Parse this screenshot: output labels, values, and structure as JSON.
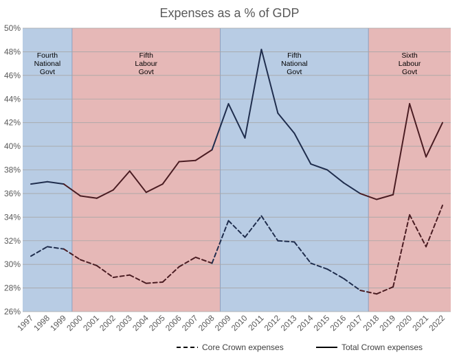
{
  "chart_data": {
    "type": "line",
    "title": "Expenses as a % of GDP",
    "xlabel": "",
    "ylabel": "",
    "x": [
      "1997",
      "1998",
      "1999",
      "2000",
      "2001",
      "2002",
      "2003",
      "2004",
      "2005",
      "2006",
      "2007",
      "2008",
      "2009",
      "2010",
      "2011",
      "2012",
      "2013",
      "2014",
      "2015",
      "2016",
      "2017",
      "2018",
      "2019",
      "2020",
      "2021",
      "2022"
    ],
    "ylim": [
      26,
      50
    ],
    "y_ticks": [
      "26%",
      "28%",
      "30%",
      "32%",
      "34%",
      "36%",
      "38%",
      "40%",
      "42%",
      "44%",
      "46%",
      "48%",
      "50%"
    ],
    "grid": true,
    "legend_position": "bottom",
    "series": [
      {
        "name": "Core Crown expenses",
        "style": "dashed",
        "values": [
          30.7,
          31.5,
          31.3,
          30.4,
          29.9,
          28.9,
          29.1,
          28.4,
          28.5,
          29.8,
          30.6,
          30.1,
          33.7,
          32.3,
          34.1,
          32.0,
          31.9,
          30.1,
          29.6,
          28.8,
          27.8,
          27.5,
          28.1,
          34.2,
          31.5,
          35.0
        ]
      },
      {
        "name": "Total Crown expenses",
        "style": "solid",
        "values": [
          36.8,
          37.0,
          36.8,
          35.8,
          35.6,
          36.3,
          37.9,
          36.1,
          36.8,
          38.7,
          38.8,
          39.7,
          43.6,
          40.7,
          48.2,
          42.8,
          41.1,
          38.5,
          38.0,
          36.9,
          36.0,
          35.5,
          35.9,
          43.6,
          39.1,
          42.0
        ]
      }
    ],
    "eras": [
      {
        "lines": [
          "Fourth",
          "National",
          "Govt"
        ],
        "from_year": "1997",
        "to_year": "1999",
        "party": "National",
        "color": "#b8cce4"
      },
      {
        "lines": [
          "Fifth",
          "Labour",
          "Govt"
        ],
        "from_year": "2000",
        "to_year": "2008",
        "party": "Labour",
        "color": "#e6b8b7"
      },
      {
        "lines": [
          "Fifth",
          "National",
          "Govt"
        ],
        "from_year": "2009",
        "to_year": "2017",
        "party": "National",
        "color": "#b8cce4"
      },
      {
        "lines": [
          "Sixth",
          "Labour",
          "Govt"
        ],
        "from_year": "2018",
        "to_year": "2022",
        "party": "Labour",
        "color": "#e6b8b7"
      }
    ],
    "colors": {
      "national_line": "#1f2d4d",
      "labour_line": "#4a1c22",
      "grid": "#a6a6a6",
      "text": "#595959"
    }
  }
}
